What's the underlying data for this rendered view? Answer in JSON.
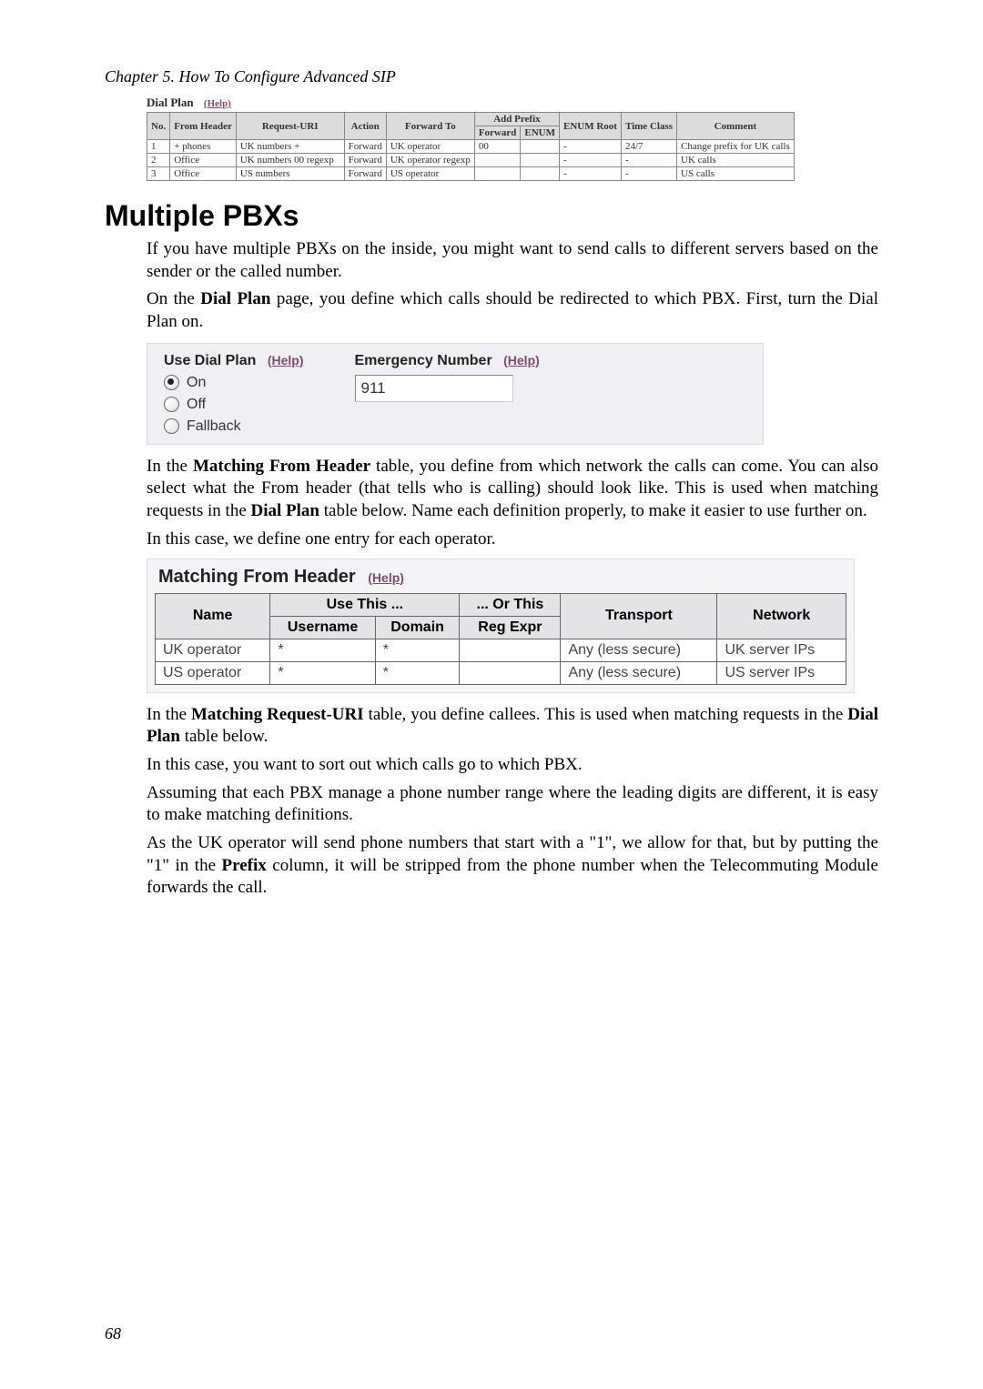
{
  "chapter": "Chapter 5. How To Configure Advanced SIP",
  "dial_plan": {
    "title": "Dial Plan",
    "help": "(Help)",
    "headers": {
      "no": "No.",
      "from_header": "From Header",
      "request_uri": "Request-URI",
      "action": "Action",
      "forward_to": "Forward To",
      "add_prefix": "Add Prefix",
      "forward": "Forward",
      "enum": "ENUM",
      "enum_root": "ENUM Root",
      "time_class": "Time Class",
      "comment": "Comment"
    },
    "rows": [
      {
        "no": "1",
        "from": "+ phones",
        "uri": "UK numbers +",
        "action": "Forward",
        "fwd_to": "UK operator",
        "prefix_fwd": "00",
        "prefix_enum": "",
        "enum_root": "-",
        "time": "24/7",
        "comment": "Change prefix for UK calls"
      },
      {
        "no": "2",
        "from": "Office",
        "uri": "UK numbers 00 regexp",
        "action": "Forward",
        "fwd_to": "UK operator regexp",
        "prefix_fwd": "",
        "prefix_enum": "",
        "enum_root": "-",
        "time": "-",
        "comment": "UK calls"
      },
      {
        "no": "3",
        "from": "Office",
        "uri": "US numbers",
        "action": "Forward",
        "fwd_to": "US operator",
        "prefix_fwd": "",
        "prefix_enum": "",
        "enum_root": "-",
        "time": "-",
        "comment": "US calls"
      }
    ]
  },
  "section_heading": "Multiple PBXs",
  "para1": "If you have multiple PBXs on the inside, you might want to send calls to different servers based on the sender or the called number.",
  "para2_a": "On the ",
  "para2_b": "Dial Plan",
  "para2_c": " page, you define which calls should be redirected to which PBX. First, turn the Dial Plan on.",
  "use_dial_plan": {
    "title": "Use Dial Plan",
    "help": "(Help)",
    "options": [
      "On",
      "Off",
      "Fallback"
    ],
    "selected": 0
  },
  "emergency": {
    "title": "Emergency Number",
    "help": "(Help)",
    "value": "911"
  },
  "para3_a": "In the ",
  "para3_b": "Matching From Header",
  "para3_c": " table, you define from which network the calls can come. You can also select what the From header (that tells who is calling) should look like. This is used when matching requests in the ",
  "para3_d": "Dial Plan",
  "para3_e": " table below. Name each definition properly, to make it easier to use further on.",
  "para4": "In this case, we define one entry for each operator.",
  "mfh": {
    "title": "Matching From Header",
    "help": "(Help)",
    "headers": {
      "name": "Name",
      "use_this": "Use This ...",
      "or_this": "... Or This",
      "username": "Username",
      "domain": "Domain",
      "reg_expr": "Reg Expr",
      "transport": "Transport",
      "network": "Network"
    },
    "rows": [
      {
        "name": "UK operator",
        "username": "*",
        "domain": "*",
        "reg_expr": "",
        "transport": "Any (less secure)",
        "network": "UK server IPs"
      },
      {
        "name": "US operator",
        "username": "*",
        "domain": "*",
        "reg_expr": "",
        "transport": "Any (less secure)",
        "network": "US server IPs"
      }
    ]
  },
  "para5_a": "In the ",
  "para5_b": "Matching Request-URI",
  "para5_c": " table, you define callees. This is used when matching requests in the ",
  "para5_d": "Dial Plan",
  "para5_e": " table below.",
  "para6": "In this case, you want to sort out which calls go to which PBX.",
  "para7": "Assuming that each PBX manage a phone number range where the leading digits are different, it is easy to make matching definitions.",
  "para8_a": "As the UK operator will send phone numbers that start with a \"1\", we allow for that, but by putting the \"1\" in the ",
  "para8_b": "Prefix",
  "para8_c": " column, it will be stripped from the phone number when the Telecommuting Module forwards the call.",
  "page_number": "68"
}
